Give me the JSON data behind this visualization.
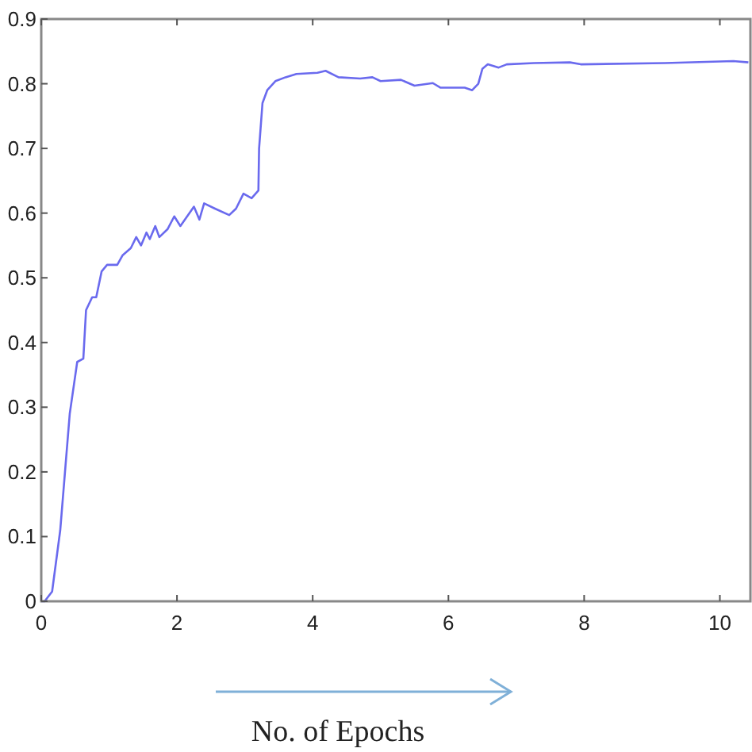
{
  "chart_data": {
    "type": "line",
    "xlabel": "No. of Epochs",
    "xlim": [
      0,
      10.45
    ],
    "xticks": [
      0,
      2,
      4,
      6,
      8,
      10
    ],
    "ylim": [
      0,
      0.9
    ],
    "yticks": [
      0,
      0.1,
      0.2,
      0.3,
      0.4,
      0.5,
      0.6,
      0.7,
      0.8,
      0.9
    ],
    "grid": false,
    "series": [
      {
        "color": "#6a6aee",
        "x": [
          0,
          0.05,
          0.16,
          0.28,
          0.35,
          0.42,
          0.53,
          0.62,
          0.66,
          0.75,
          0.81,
          0.89,
          0.97,
          1.12,
          1.2,
          1.32,
          1.4,
          1.47,
          1.55,
          1.6,
          1.68,
          1.74,
          1.86,
          1.96,
          2.05,
          2.25,
          2.33,
          2.4,
          2.56,
          2.77,
          2.87,
          2.98,
          3.1,
          3.2,
          3.21,
          3.26,
          3.33,
          3.45,
          3.6,
          3.76,
          4.07,
          4.19,
          4.38,
          4.7,
          4.88,
          5.0,
          5.3,
          5.5,
          5.77,
          5.88,
          6.24,
          6.35,
          6.44,
          6.5,
          6.58,
          6.74,
          6.86,
          7.26,
          7.79,
          7.95,
          9.19,
          10.2,
          10.42
        ],
        "values": [
          0,
          0,
          0.015,
          0.11,
          0.2,
          0.29,
          0.37,
          0.375,
          0.45,
          0.47,
          0.47,
          0.51,
          0.52,
          0.52,
          0.535,
          0.546,
          0.563,
          0.55,
          0.57,
          0.56,
          0.58,
          0.563,
          0.575,
          0.595,
          0.58,
          0.61,
          0.59,
          0.615,
          0.607,
          0.597,
          0.607,
          0.63,
          0.623,
          0.635,
          0.7,
          0.77,
          0.79,
          0.804,
          0.81,
          0.815,
          0.817,
          0.82,
          0.81,
          0.808,
          0.81,
          0.804,
          0.806,
          0.797,
          0.801,
          0.794,
          0.794,
          0.79,
          0.8,
          0.823,
          0.83,
          0.825,
          0.83,
          0.832,
          0.833,
          0.83,
          0.832,
          0.835,
          0.833
        ]
      }
    ]
  }
}
